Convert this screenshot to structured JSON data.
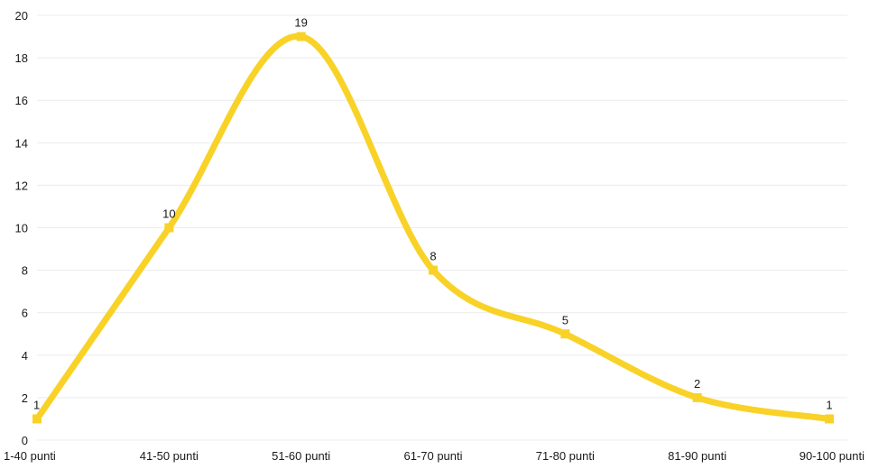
{
  "chart_data": {
    "type": "line",
    "title": "",
    "xlabel": "",
    "ylabel": "",
    "categories": [
      "1-40 punti",
      "41-50 punti",
      "51-60 punti",
      "61-70 punti",
      "71-80 punti",
      "81-90 punti",
      "90-100 punti"
    ],
    "series": [
      {
        "values": [
          1,
          10,
          19,
          8,
          5,
          2,
          1
        ]
      }
    ],
    "ylim": [
      0,
      20
    ],
    "yticks": [
      0,
      2,
      4,
      6,
      8,
      10,
      12,
      14,
      16,
      18,
      20
    ],
    "grid": true,
    "smooth": true,
    "show_data_labels": true,
    "legend": "none",
    "colors": {
      "line": "#F9D228",
      "gridline": "#ececec",
      "text": "#1a1a1a"
    }
  }
}
